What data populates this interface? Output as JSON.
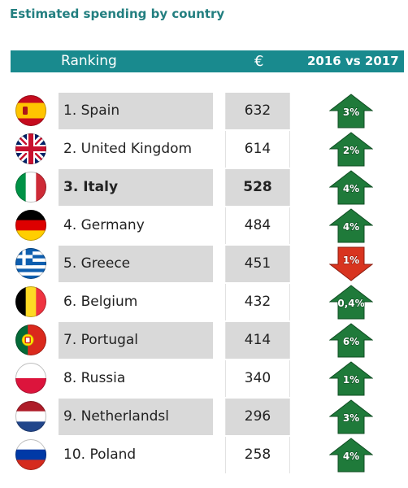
{
  "chart_data": {
    "type": "table",
    "title": "Estimated spending by country",
    "columns": [
      "Ranking",
      "€",
      "2016 vs 2017"
    ],
    "rows": [
      {
        "label": "1. Spain",
        "value": 632,
        "change": "3%",
        "flag_icon": "flag-spain-icon",
        "arrow_icon": "arrow-up-icon",
        "highlight": false,
        "shaded": true
      },
      {
        "label": "2. United Kingdom",
        "value": 614,
        "change": "2%",
        "flag_icon": "flag-uk-icon",
        "arrow_icon": "arrow-up-icon",
        "highlight": false,
        "shaded": false
      },
      {
        "label": "3. Italy",
        "value": 528,
        "change": "4%",
        "flag_icon": "flag-italy-icon",
        "arrow_icon": "arrow-up-icon",
        "highlight": true,
        "shaded": true
      },
      {
        "label": "4. Germany",
        "value": 484,
        "change": "4%",
        "flag_icon": "flag-germany-icon",
        "arrow_icon": "arrow-up-icon",
        "highlight": false,
        "shaded": false
      },
      {
        "label": "5. Greece",
        "value": 451,
        "change": "1%",
        "flag_icon": "flag-greece-icon",
        "arrow_icon": "arrow-down-icon",
        "highlight": false,
        "shaded": true
      },
      {
        "label": "6. Belgium",
        "value": 432,
        "change": "0,4%",
        "flag_icon": "flag-belgium-icon",
        "arrow_icon": "arrow-up-icon",
        "highlight": false,
        "shaded": false
      },
      {
        "label": "7. Portugal",
        "value": 414,
        "change": "6%",
        "flag_icon": "flag-portugal-icon",
        "arrow_icon": "arrow-up-icon",
        "highlight": false,
        "shaded": true
      },
      {
        "label": "8. Russia",
        "value": 340,
        "change": "1%",
        "flag_icon": "flag-poland-icon",
        "arrow_icon": "arrow-up-icon",
        "highlight": false,
        "shaded": false
      },
      {
        "label": "9. Netherlandsl",
        "value": 296,
        "change": "3%",
        "flag_icon": "flag-netherlands-icon",
        "arrow_icon": "arrow-up-icon",
        "highlight": false,
        "shaded": true
      },
      {
        "label": "10. Poland",
        "value": 258,
        "change": "4%",
        "flag_icon": "flag-russia-icon",
        "arrow_icon": "arrow-up-icon",
        "highlight": false,
        "shaded": false
      }
    ]
  },
  "colors": {
    "title": "#237f80",
    "header_bg": "#198a8e",
    "shade": "#d9d9d9",
    "arrow_up": "#1f7a3a",
    "arrow_up_edge": "#0f4d22",
    "arrow_down": "#d8341f",
    "arrow_down_edge": "#8c1c0f"
  }
}
